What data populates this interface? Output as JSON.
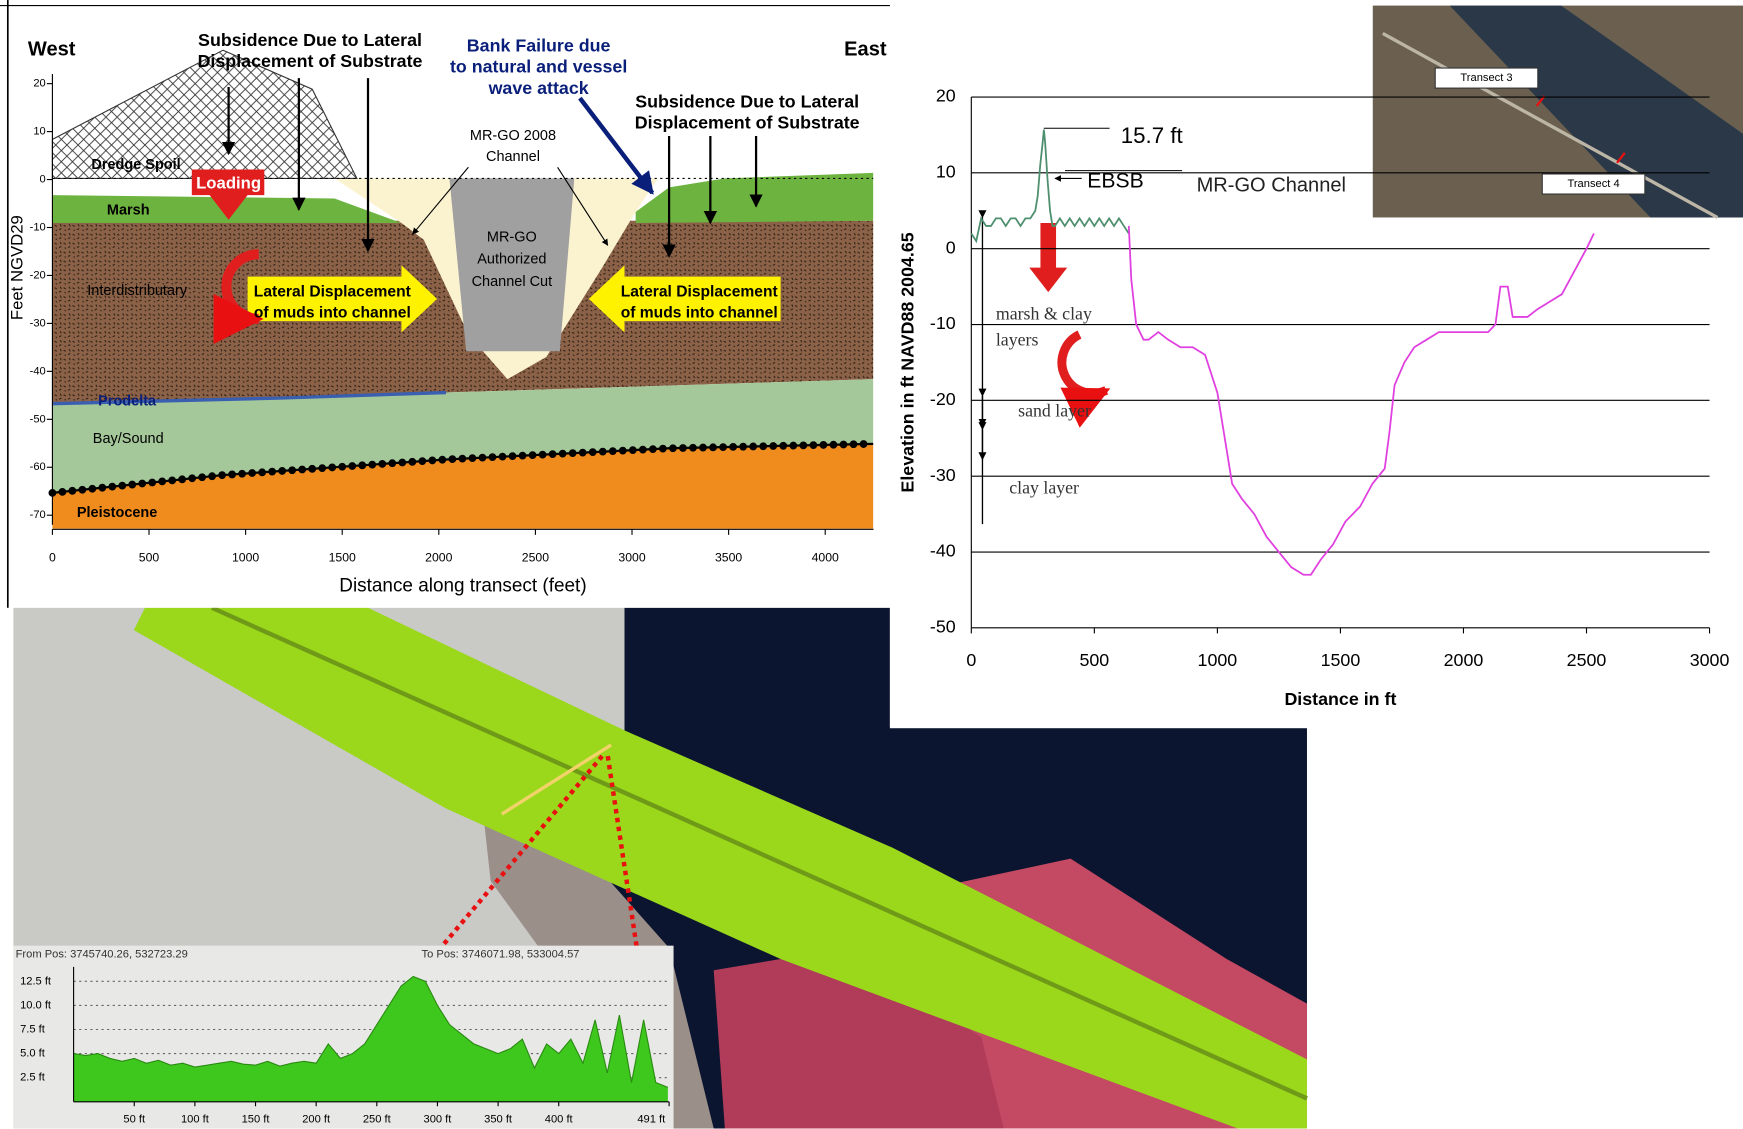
{
  "chart_data": [
    {
      "type": "section",
      "annotations": [
        [
          "West"
        ],
        [
          "East"
        ],
        [
          "Subsidence Due to Lateral",
          "Displacement of Substrate"
        ],
        [
          "Bank Failure due",
          "to natural and vessel",
          "wave attack"
        ],
        [
          "Subsidence Due to Lateral",
          "Displacement of Substrate"
        ],
        [
          "MR-GO 2008",
          "Channel"
        ],
        [
          "Dredge Spoil"
        ],
        [
          "Loading"
        ],
        [
          "Marsh"
        ],
        [
          "Interdistributary"
        ],
        [
          "Lateral Displacement",
          "of muds into channel"
        ],
        [
          "MR-GO",
          "Authorized",
          "Channel Cut"
        ],
        [
          "Lateral Displacement",
          "of muds into channel"
        ],
        [
          "Prodelta"
        ],
        [
          "Bay/Sound"
        ],
        [
          "Pleistocene"
        ]
      ],
      "xlabel": "Distance along transect (feet)",
      "ylabel": "Feet NGVD29",
      "xlim": [
        0,
        4250
      ],
      "ylim": [
        -72,
        22
      ],
      "xticks": [
        0,
        500,
        1000,
        1500,
        2000,
        2500,
        3000,
        3500,
        4000
      ],
      "yticks": [
        20,
        10,
        0,
        -10,
        -20,
        -30,
        -40,
        -50,
        -60,
        -70
      ]
    },
    {
      "type": "line",
      "xlabel": "Distance in ft",
      "ylabel": "Elevation in ft NAVD88 2004.65",
      "xlim": [
        0,
        3000
      ],
      "ylim": [
        -50,
        20
      ],
      "xticks": [
        0,
        500,
        1000,
        1500,
        2000,
        2500,
        3000
      ],
      "yticks": [
        20,
        10,
        0,
        -10,
        -20,
        -30,
        -40,
        -50
      ],
      "grid": true,
      "annotations": [
        [
          "15.7 ft"
        ],
        [
          "EBSB"
        ],
        [
          "MR-GO Channel"
        ],
        [
          "marsh & clay",
          "layers"
        ],
        [
          "sand layer"
        ],
        [
          "clay layer"
        ]
      ],
      "series": [
        {
          "color": "#4e8f6e",
          "x": [
            0,
            20,
            40,
            60,
            80,
            100,
            120,
            140,
            160,
            180,
            200,
            220,
            240,
            260,
            270,
            280,
            290,
            295,
            300,
            310,
            320,
            330,
            340,
            360,
            380,
            400,
            420,
            440,
            460,
            480,
            500,
            520,
            540,
            560,
            580,
            600,
            620,
            640
          ],
          "values": [
            2,
            1,
            4,
            3,
            3,
            4,
            4,
            3,
            4,
            4,
            3,
            4,
            4,
            5,
            7,
            11,
            14,
            15.7,
            14,
            9,
            5,
            3,
            3,
            4,
            3,
            4,
            3,
            4,
            3,
            4,
            3,
            4,
            3,
            4,
            3,
            4,
            3,
            2
          ]
        },
        {
          "color": "#e040e0",
          "x": [
            640,
            650,
            670,
            700,
            720,
            760,
            800,
            850,
            900,
            950,
            1000,
            1030,
            1060,
            1100,
            1150,
            1200,
            1250,
            1300,
            1350,
            1380,
            1420,
            1470,
            1520,
            1580,
            1630,
            1680,
            1700,
            1720,
            1760,
            1800,
            1850,
            1900,
            1950,
            2000,
            2050,
            2100,
            2130,
            2150,
            2180,
            2200,
            2220,
            2260,
            2300,
            2350,
            2400,
            2450,
            2500,
            2530
          ],
          "values": [
            3,
            -4,
            -10,
            -12,
            -12,
            -11,
            -12,
            -13,
            -13,
            -14,
            -19,
            -25,
            -31,
            -33,
            -35,
            -38,
            -40,
            -42,
            -43,
            -43,
            -41,
            -39,
            -36,
            -34,
            -31,
            -29,
            -24,
            -18,
            -15,
            -13,
            -12,
            -11,
            -11,
            -11,
            -11,
            -11,
            -10,
            -5,
            -5,
            -9,
            -9,
            -9,
            -8,
            -7,
            -6,
            -3,
            0,
            2
          ]
        }
      ]
    },
    {
      "type": "area",
      "annotations": [
        [
          "From Pos: 3745740.26, 532723.29"
        ],
        [
          "To Pos: 3746071.98, 533004.57"
        ]
      ],
      "xlim": [
        0,
        491
      ],
      "ylim": [
        0,
        14
      ],
      "xticks": [
        {
          "value": 50,
          "label": "50 ft"
        },
        {
          "value": 100,
          "label": "100 ft"
        },
        {
          "value": 150,
          "label": "150 ft"
        },
        {
          "value": 200,
          "label": "200 ft"
        },
        {
          "value": 250,
          "label": "250 ft"
        },
        {
          "value": 300,
          "label": "300 ft"
        },
        {
          "value": 350,
          "label": "350 ft"
        },
        {
          "value": 400,
          "label": "400 ft"
        },
        {
          "value": 491,
          "label": "491 ft"
        }
      ],
      "yticks": [
        {
          "value": 2.5,
          "label": "2.5 ft"
        },
        {
          "value": 5,
          "label": "5.0 ft"
        },
        {
          "value": 7.5,
          "label": "7.5 ft"
        },
        {
          "value": 10,
          "label": "10.0 ft"
        },
        {
          "value": 12.5,
          "label": "12.5 ft"
        }
      ],
      "grid": true,
      "color": "#3ec81e",
      "x": [
        0,
        10,
        20,
        30,
        40,
        50,
        60,
        70,
        80,
        90,
        100,
        110,
        120,
        130,
        140,
        150,
        160,
        170,
        180,
        190,
        200,
        210,
        220,
        230,
        240,
        250,
        260,
        270,
        280,
        290,
        300,
        310,
        320,
        330,
        340,
        350,
        360,
        370,
        380,
        390,
        400,
        410,
        420,
        430,
        440,
        450,
        460,
        470,
        480,
        490
      ],
      "values": [
        5,
        4.8,
        5,
        4.5,
        4.2,
        4.5,
        4,
        4.3,
        3.8,
        4,
        3.6,
        3.8,
        4,
        4.2,
        3.9,
        3.8,
        4.2,
        3.7,
        4,
        4.2,
        4,
        6,
        4.5,
        5,
        6,
        8,
        10,
        12,
        13,
        12.5,
        10,
        8,
        7,
        6,
        5.5,
        5,
        5.5,
        6.5,
        3.5,
        6,
        5,
        6.5,
        4,
        8.5,
        3,
        9,
        2,
        8.5,
        2,
        1.5
      ]
    }
  ],
  "map_labels": [
    "Transect 3",
    "Transect 4"
  ]
}
